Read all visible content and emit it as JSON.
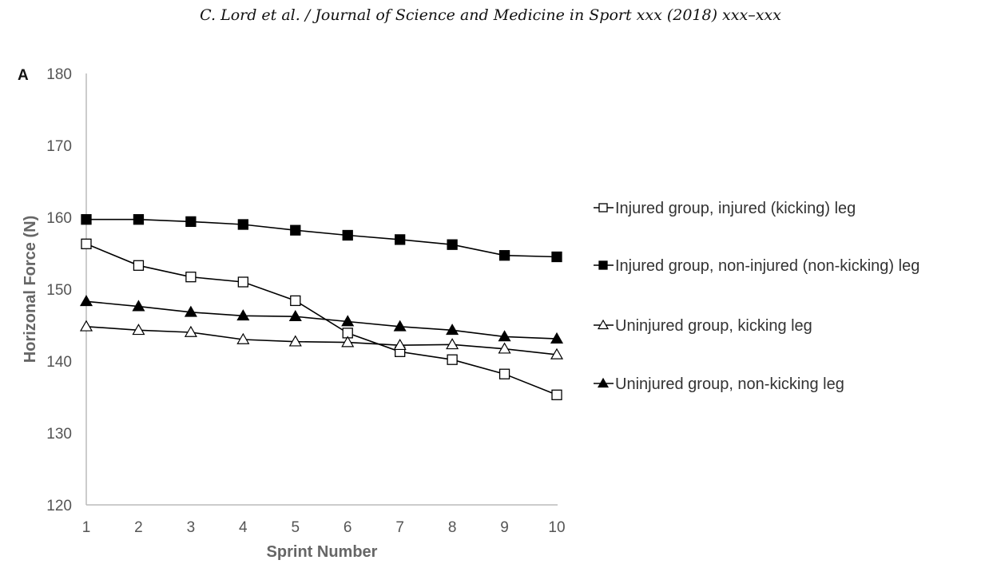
{
  "page_header": "C. Lord et al. / Journal of Science and Medicine in Sport xxx (2018) xxx–xxx",
  "chart_data": {
    "type": "line",
    "panel_label": "A",
    "xlabel": "Sprint Number",
    "ylabel": "Horizonal Force (N)",
    "x": [
      1,
      2,
      3,
      4,
      5,
      6,
      7,
      8,
      9,
      10
    ],
    "ylim": [
      120,
      180
    ],
    "yticks": [
      120,
      130,
      140,
      150,
      160,
      170,
      180
    ],
    "grid": false,
    "legend_position": "right",
    "series": [
      {
        "name": "Injured group, injured (kicking) leg",
        "marker": "open-square",
        "values": [
          156.3,
          153.3,
          151.7,
          151.0,
          148.4,
          143.9,
          141.3,
          140.2,
          138.2,
          135.3
        ]
      },
      {
        "name": "Injured group, non-injured (non-kicking) leg",
        "marker": "filled-square",
        "values": [
          159.7,
          159.7,
          159.4,
          159.0,
          158.2,
          157.5,
          156.9,
          156.2,
          154.7,
          154.5
        ]
      },
      {
        "name": "Uninjured group, kicking leg",
        "marker": "open-triangle",
        "values": [
          144.8,
          144.3,
          144.0,
          143.0,
          142.7,
          142.6,
          142.2,
          142.3,
          141.7,
          140.9
        ]
      },
      {
        "name": "Uninjured group, non-kicking leg",
        "marker": "filled-triangle",
        "values": [
          148.3,
          147.6,
          146.8,
          146.3,
          146.2,
          145.5,
          144.8,
          144.3,
          143.4,
          143.1
        ]
      }
    ]
  }
}
